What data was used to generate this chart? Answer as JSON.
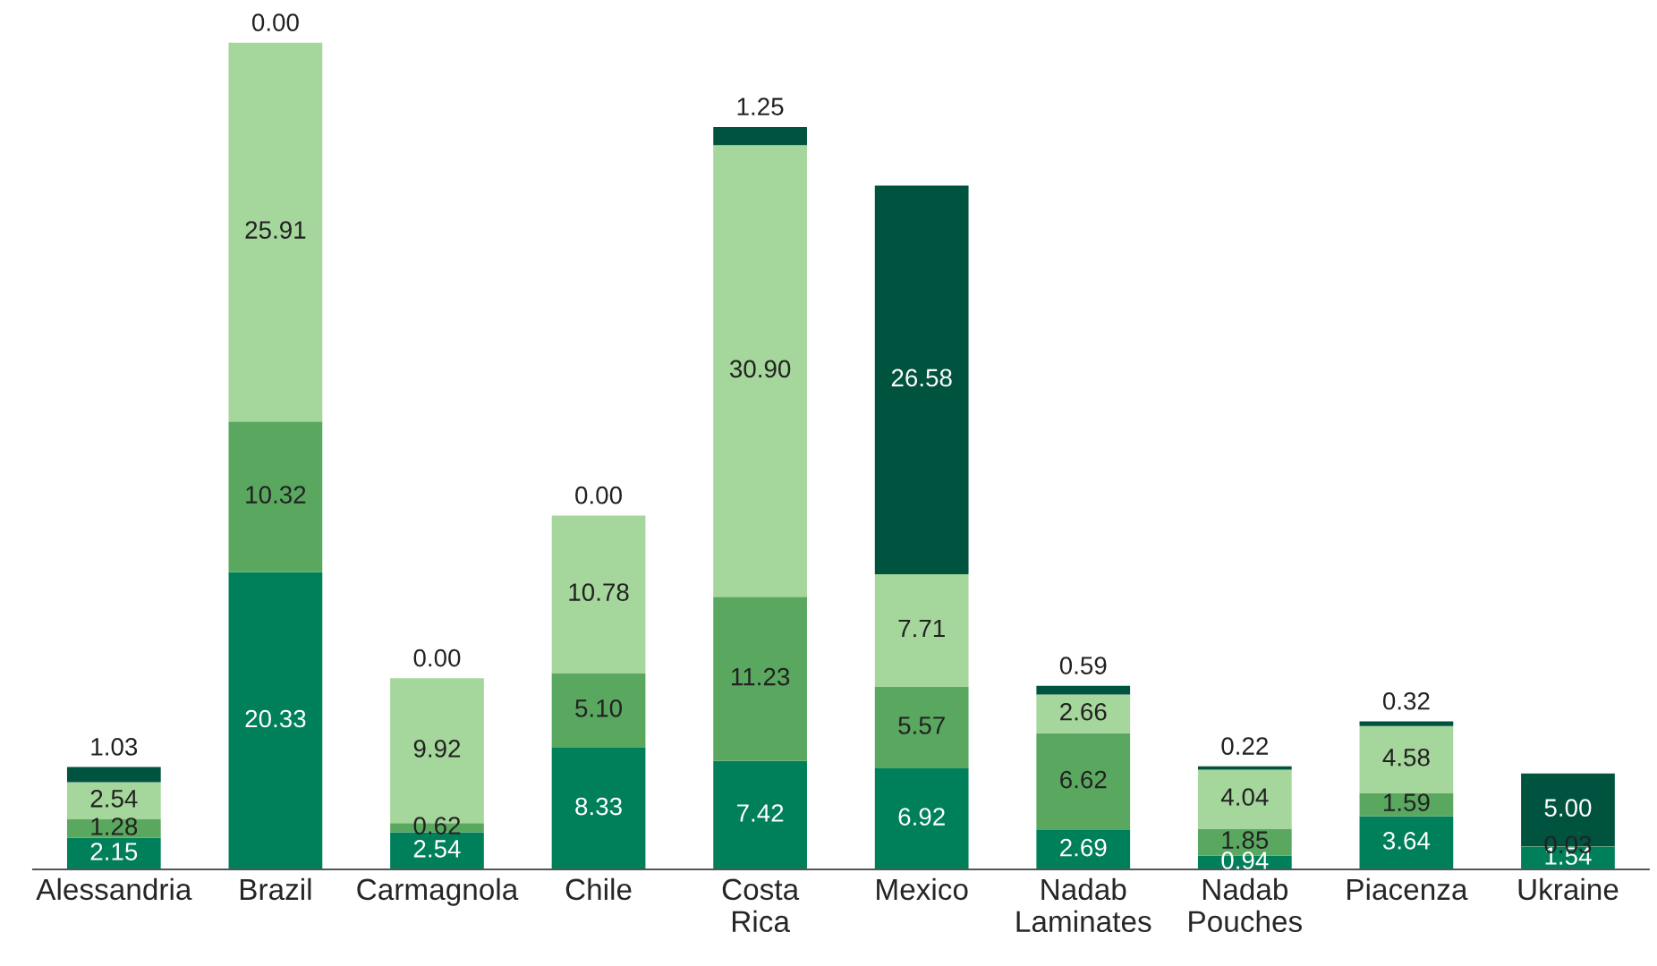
{
  "chart_data": {
    "type": "bar",
    "stacked": true,
    "grid": false,
    "legend": false,
    "tick_labels": "x",
    "categories": [
      "Alessandria",
      "Brazil",
      "Carmagnola",
      "Chile",
      "Costa\nRica",
      "Mexico",
      "Nadab\nLaminates",
      "Nadab\nPouches",
      "Piacenza",
      "Ukraine"
    ],
    "series": [
      {
        "color": "#00805a",
        "values": [
          2.15,
          20.33,
          2.54,
          8.33,
          7.42,
          6.92,
          2.69,
          0.94,
          3.64,
          1.54
        ],
        "value_labels": [
          "2.15",
          "20.33",
          "2.54",
          "8.33",
          "7.42",
          "6.92",
          "2.69",
          "0.94",
          "3.64",
          "1.54"
        ]
      },
      {
        "color": "#5aa860",
        "values": [
          1.28,
          10.32,
          0.62,
          5.1,
          11.23,
          5.57,
          6.62,
          1.85,
          1.59,
          0.03
        ],
        "value_labels": [
          "1.28",
          "10.32",
          "0.62",
          "5.10",
          "11.23",
          "5.57",
          "6.62",
          "1.85",
          "1.59",
          "0.03"
        ]
      },
      {
        "color": "#a5d69b",
        "values": [
          2.54,
          25.91,
          9.92,
          10.78,
          30.9,
          7.71,
          2.66,
          4.04,
          4.58,
          null
        ],
        "value_labels": [
          "2.54",
          "25.91",
          "9.92",
          "10.78",
          "30.90",
          "7.71",
          "2.66",
          "4.04",
          "4.58",
          null
        ]
      },
      {
        "color": "#00533e",
        "values": [
          1.03,
          0.0,
          0.0,
          0.0,
          1.25,
          26.58,
          0.59,
          0.22,
          0.32,
          5.0
        ],
        "value_labels": [
          "1.03",
          "0.00",
          "0.00",
          "0.00",
          "1.25",
          "26.58",
          "0.59",
          "0.22",
          "0.32",
          "5.00"
        ]
      }
    ]
  }
}
